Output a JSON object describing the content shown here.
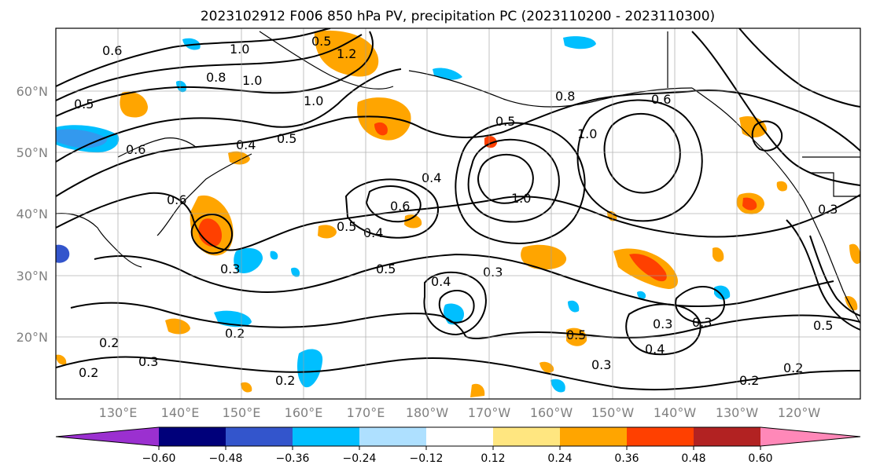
{
  "title": "2023102912 F006 850 hPa PV, precipitation PC (2023110200 - 2023110300)",
  "lat_labels": [
    "60°N",
    "50°N",
    "40°N",
    "30°N",
    "20°N"
  ],
  "lon_labels": [
    "130°E",
    "140°E",
    "150°E",
    "160°E",
    "170°E",
    "180°W",
    "170°W",
    "160°W",
    "150°W",
    "140°W",
    "130°W",
    "120°W"
  ],
  "colorbar": {
    "colors": [
      "#9b30d0",
      "#00007a",
      "#3355cc",
      "#00bfff",
      "#aee0ff",
      "#ffffff",
      "#ffe680",
      "#ffa500",
      "#ff4000",
      "#b22222",
      "#ff88b8"
    ],
    "tick_labels": [
      "−0.60",
      "−0.48",
      "−0.36",
      "−0.24",
      "−0.12",
      "0.12",
      "0.24",
      "0.36",
      "0.48",
      "0.60"
    ]
  },
  "contour_labels": [
    "1.0",
    "1.0",
    "1.0",
    "0.8",
    "0.6",
    "0.5",
    "0.5",
    "0.4",
    "0.6",
    "0.5",
    "0.4",
    "0.6",
    "0.5",
    "0.3",
    "0.4",
    "0.3",
    "0.3",
    "0.2",
    "0.2",
    "0.3",
    "0.2",
    "0.2",
    "0.3",
    "0.5",
    "0.4",
    "0.3",
    "0.2",
    "1.0",
    "1.0",
    "0.5",
    "0.6",
    "0.8",
    "1.2",
    "0.2",
    "0.3",
    "0.4",
    "0.5",
    "0.5",
    "0.6"
  ]
}
